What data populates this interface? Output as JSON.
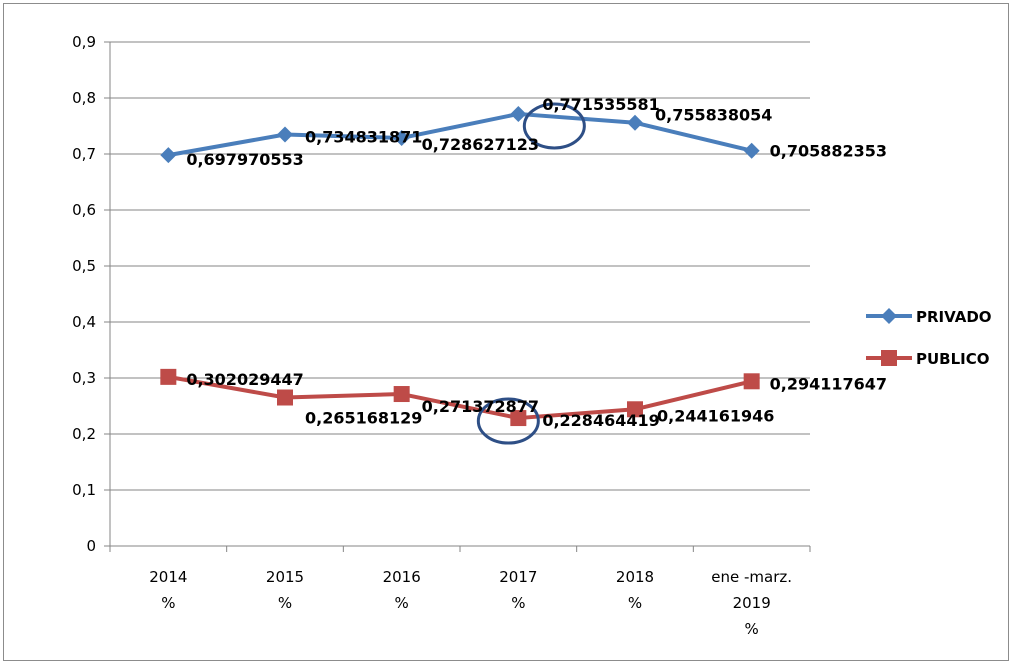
{
  "chart_data": {
    "type": "line",
    "categories": [
      [
        "2014",
        "%"
      ],
      [
        "2015",
        "%"
      ],
      [
        "2016",
        "%"
      ],
      [
        "2017",
        "%"
      ],
      [
        "2018",
        "%"
      ],
      [
        "ene -marz.",
        "2019",
        "%"
      ]
    ],
    "ylim": [
      0,
      0.9
    ],
    "ytick_labels": [
      "0",
      "0,1",
      "0,2",
      "0,3",
      "0,4",
      "0,5",
      "0,6",
      "0,7",
      "0,8",
      "0,9"
    ],
    "grid": true,
    "legend": "right",
    "series": [
      {
        "name": "PRIVADO",
        "color": "#4a7ebb",
        "marker": "diamond",
        "values": [
          0.697970553,
          0.734831871,
          0.728627123,
          0.771535581,
          0.755838054,
          0.705882353
        ],
        "labels": [
          "0,697970553",
          "0,734831871",
          "0,728627123",
          "0,771535581",
          "0,755838054",
          "0,705882353"
        ]
      },
      {
        "name": "PUBLICO",
        "color": "#be4b48",
        "marker": "square",
        "values": [
          0.302029447,
          0.265168129,
          0.271372877,
          0.228464419,
          0.244161946,
          0.294117647
        ],
        "labels": [
          "0,302029447",
          "0,265168129",
          "0,271372877",
          "0,228464419",
          "0,244161946",
          "0,294117647"
        ]
      }
    ],
    "annotations": [
      {
        "type": "circle",
        "series": 0,
        "point": 3,
        "color": "#2e4f86"
      },
      {
        "type": "circle",
        "series": 1,
        "point": 3,
        "color": "#2e4f86"
      }
    ]
  }
}
